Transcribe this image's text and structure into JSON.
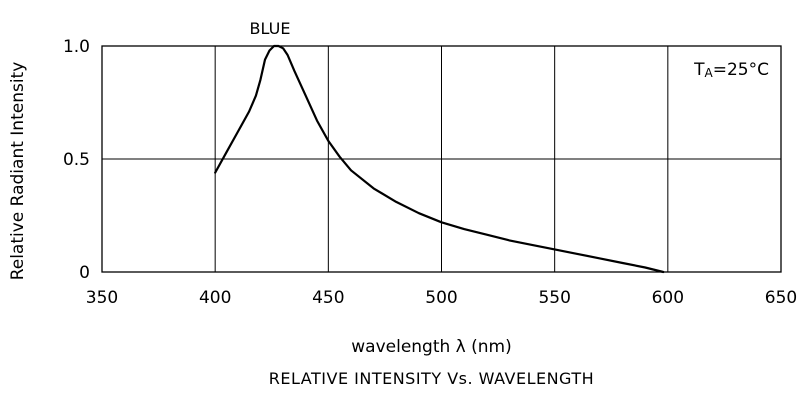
{
  "chart_data": {
    "type": "line",
    "title": "RELATIVE INTENSITY Vs. WAVELENGTH",
    "xlabel": "wavelength λ  (nm)",
    "ylabel": "Relative Radiant Intensity",
    "xlim": [
      350,
      650
    ],
    "ylim": [
      0,
      1.0
    ],
    "x_ticks": [
      350,
      400,
      450,
      500,
      550,
      600,
      650
    ],
    "x_tick_labels": [
      "350",
      "400",
      "450",
      "500",
      "550",
      "600",
      "650"
    ],
    "y_ticks": [
      0,
      0.5,
      1.0
    ],
    "y_tick_labels": [
      "0",
      "0.5",
      "1.0"
    ],
    "grid": true,
    "annotation": {
      "main": "T",
      "sub": "A",
      "value": "=25°C"
    },
    "series": [
      {
        "name": "BLUE",
        "color": "#000000",
        "x": [
          400,
          405,
          410,
          415,
          418,
          420,
          422,
          424,
          426,
          428,
          430,
          432,
          435,
          440,
          445,
          450,
          455,
          460,
          470,
          480,
          490,
          500,
          510,
          520,
          530,
          540,
          550,
          560,
          570,
          580,
          590,
          598
        ],
        "y": [
          0.44,
          0.53,
          0.62,
          0.71,
          0.78,
          0.85,
          0.94,
          0.98,
          1.0,
          1.0,
          0.99,
          0.96,
          0.89,
          0.78,
          0.67,
          0.58,
          0.51,
          0.45,
          0.37,
          0.31,
          0.26,
          0.22,
          0.19,
          0.165,
          0.14,
          0.12,
          0.1,
          0.08,
          0.06,
          0.04,
          0.02,
          0.0
        ]
      }
    ]
  }
}
